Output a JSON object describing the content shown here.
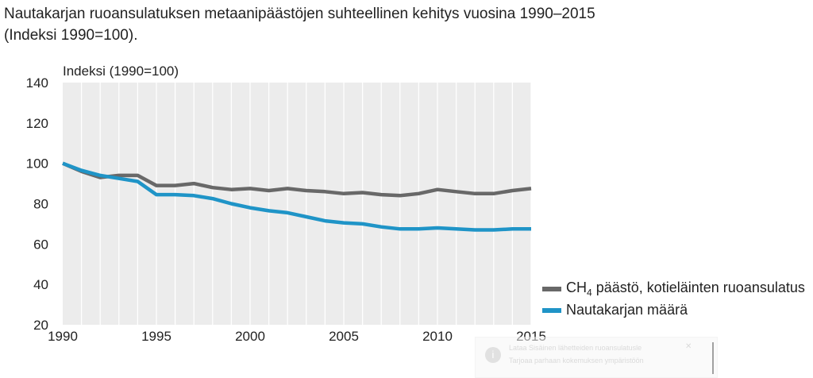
{
  "page": {
    "title_line1": "Nautakarjan ruoansulatuksen metaanipäästöjen suhteellinen kehitys vuosina 1990–2015",
    "title_line2": "(Indeksi 1990=100)."
  },
  "chart_data": {
    "type": "line",
    "ylabel": "Indeksi (1990=100)",
    "xlim": [
      1990,
      2015
    ],
    "ylim": [
      20,
      140
    ],
    "xticks": [
      1990,
      1995,
      2000,
      2005,
      2010,
      2015
    ],
    "yticks": [
      20,
      40,
      60,
      80,
      100,
      120,
      140
    ],
    "grid": "vertical",
    "legend_position": "right",
    "x": [
      1990,
      1991,
      1992,
      1993,
      1994,
      1995,
      1996,
      1997,
      1998,
      1999,
      2000,
      2001,
      2002,
      2003,
      2004,
      2005,
      2006,
      2007,
      2008,
      2009,
      2010,
      2011,
      2012,
      2013,
      2014,
      2015
    ],
    "series": [
      {
        "name_main": "CH",
        "name_sub": "4",
        "name_rest": " päästö, kotieläinten ruoansulatus",
        "color": "#686868",
        "values": [
          100,
          96,
          93,
          94,
          94,
          89,
          89,
          90,
          88,
          87,
          87.5,
          86.5,
          87.5,
          86.5,
          86,
          85,
          85.5,
          84.5,
          84,
          85,
          87,
          86,
          85,
          85,
          86.5,
          87.5
        ]
      },
      {
        "name": "Nautakarjan määrä",
        "color": "#1f94c7",
        "values": [
          100,
          96.5,
          94,
          92.5,
          91,
          84.5,
          84.5,
          84,
          82.5,
          80,
          78,
          76.5,
          75.5,
          73.5,
          71.5,
          70.5,
          70,
          68.5,
          67.5,
          67.5,
          68,
          67.5,
          67,
          67,
          67.5,
          67.5
        ]
      }
    ]
  },
  "toast": {
    "icon": "info-icon",
    "line1": "Lataa Sisäinen lähetteiden ruoansulatusle",
    "line2": "Tarjoaa parhaan kokemuksen ympäristöön",
    "close": "✕"
  }
}
